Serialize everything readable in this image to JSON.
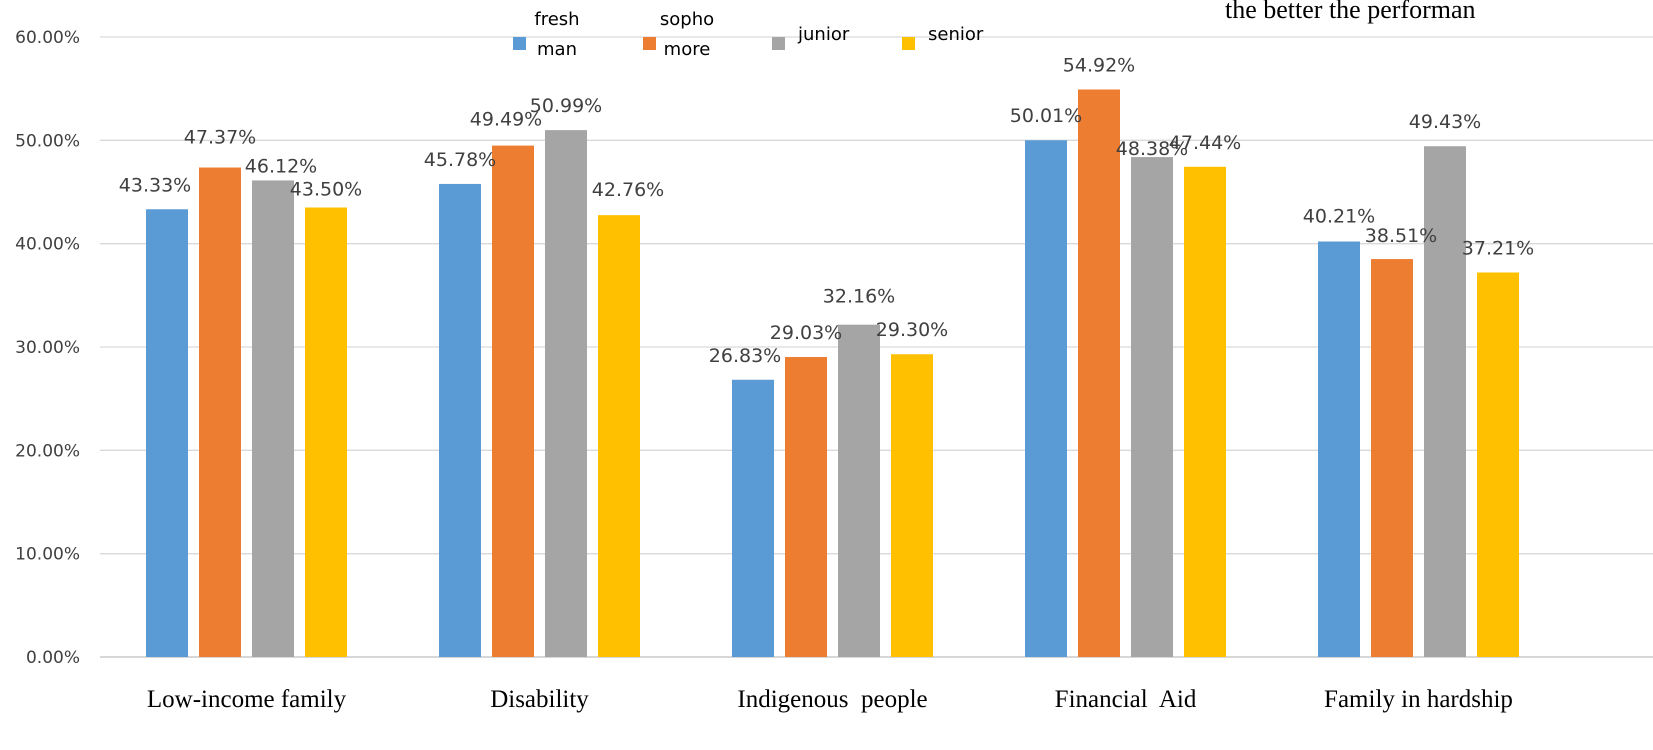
{
  "page_note": "the better the performan",
  "chart_data": {
    "type": "bar",
    "categories": [
      "Low-income family",
      "Disability",
      "Indigenous  people",
      "Financial  Aid",
      "Family in hardship"
    ],
    "series": [
      {
        "name": "freshman",
        "legend_lines": [
          "fresh",
          "man"
        ],
        "color": "#5B9BD5",
        "values": [
          43.33,
          45.78,
          26.83,
          50.01,
          40.21
        ]
      },
      {
        "name": "sophomore",
        "legend_lines": [
          "sopho",
          "more"
        ],
        "color": "#ED7D31",
        "values": [
          47.37,
          49.49,
          29.03,
          54.92,
          38.51
        ]
      },
      {
        "name": "junior",
        "legend_lines": [
          "junior"
        ],
        "color": "#A5A5A5",
        "values": [
          46.12,
          50.99,
          32.16,
          48.38,
          49.43
        ]
      },
      {
        "name": "senior",
        "legend_lines": [
          "senior"
        ],
        "color": "#FFC000",
        "values": [
          43.5,
          42.76,
          29.3,
          47.44,
          37.21
        ]
      }
    ],
    "ylim": [
      0,
      60
    ],
    "ytick_labels": [
      "0.00%",
      "10.00%",
      "20.00%",
      "30.00%",
      "40.00%",
      "50.00%",
      "60.00%"
    ],
    "data_labels": [
      [
        "43.33%",
        "45.78%",
        "26.83%",
        "50.01%",
        "40.21%"
      ],
      [
        "47.37%",
        "49.49%",
        "29.03%",
        "54.92%",
        "38.51%"
      ],
      [
        "46.12%",
        "50.99%",
        "32.16%",
        "48.38%",
        "49.43%"
      ],
      [
        "43.50%",
        "42.76%",
        "29.30%",
        "47.44%",
        "37.21%"
      ]
    ],
    "grid": true,
    "legend_position": "top-center",
    "gridline_color": "#D9D9D9"
  }
}
